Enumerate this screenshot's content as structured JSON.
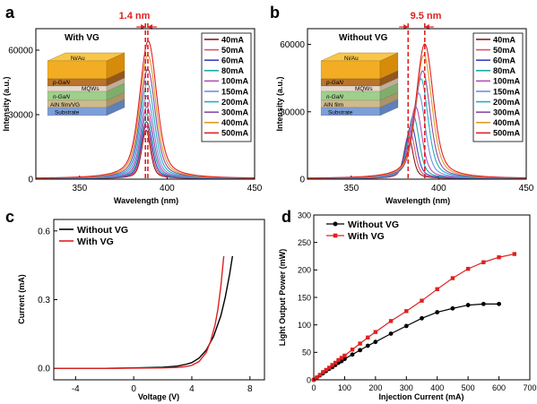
{
  "figure": {
    "panel_letters": [
      "a",
      "b",
      "c",
      "d"
    ],
    "panel_a": {
      "annotation": "1.4 nm",
      "inset_label": "With VG",
      "ylabel": "Intensity (a.u.)",
      "xlabel": "Wavelength (nm)",
      "layers": [
        "Ni/Au",
        "p-GaN",
        "MQWs",
        "n-GaN",
        "AlN film/VG",
        "Substrate"
      ]
    },
    "panel_b": {
      "annotation": "9.5 nm",
      "inset_label": "Without VG",
      "ylabel": "Intensity (a.u.)",
      "xlabel": "Wavelength (nm)",
      "layers": [
        "Ni/Au",
        "p-GaN",
        "MQWs",
        "n-GaN",
        "AlN film",
        "Substrate"
      ]
    },
    "panel_c": {
      "ylabel": "Current (mA)",
      "xlabel": "Voltage (V)"
    },
    "panel_d": {
      "ylabel": "Light Output Power (mW)",
      "xlabel": "Injection Current (mA)"
    },
    "current_legend": [
      "40mA",
      "50mA",
      "60mA",
      "80mA",
      "100mA",
      "150mA",
      "200mA",
      "300mA",
      "400mA",
      "500mA"
    ],
    "current_colors": [
      "#8b1a1a",
      "#e0506a",
      "#3e3ec0",
      "#1fa9a9",
      "#b44eb8",
      "#6f8fe0",
      "#22b0c0",
      "#8a4fa8",
      "#e09a2a",
      "#e02020"
    ]
  },
  "chart_data": [
    {
      "id": "a",
      "type": "line",
      "xlabel": "Wavelength (nm)",
      "ylabel": "Intensity (a.u.)",
      "xlim": [
        325,
        450
      ],
      "ylim": [
        0,
        70000
      ],
      "xticks": [
        350,
        400,
        450
      ],
      "yticks": [
        0,
        30000,
        60000
      ],
      "peak_markers_nm": [
        387.6,
        389.0
      ],
      "series": [
        {
          "name": "40mA",
          "peak_x": 388.0,
          "peak_y": 22500
        },
        {
          "name": "50mA",
          "peak_x": 388.1,
          "peak_y": 24500
        },
        {
          "name": "60mA",
          "peak_x": 388.2,
          "peak_y": 26500
        },
        {
          "name": "80mA",
          "peak_x": 388.3,
          "peak_y": 30000
        },
        {
          "name": "100mA",
          "peak_x": 388.4,
          "peak_y": 33500
        },
        {
          "name": "150mA",
          "peak_x": 388.5,
          "peak_y": 38500
        },
        {
          "name": "200mA",
          "peak_x": 388.7,
          "peak_y": 44500
        },
        {
          "name": "300mA",
          "peak_x": 388.9,
          "peak_y": 51000
        },
        {
          "name": "400mA",
          "peak_x": 389.0,
          "peak_y": 57500
        },
        {
          "name": "500mA",
          "peak_x": 389.2,
          "peak_y": 64000
        }
      ]
    },
    {
      "id": "b",
      "type": "line",
      "xlabel": "Wavelength (nm)",
      "ylabel": "Intensity (a.u.)",
      "xlim": [
        325,
        450
      ],
      "ylim": [
        0,
        67000
      ],
      "xticks": [
        350,
        400,
        450
      ],
      "yticks": [
        0,
        30000,
        60000
      ],
      "peak_markers_nm": [
        382.5,
        392.0
      ],
      "series": [
        {
          "name": "40mA",
          "peak_x": 382.7,
          "peak_y": 19000
        },
        {
          "name": "50mA",
          "peak_x": 383.5,
          "peak_y": 21500
        },
        {
          "name": "60mA",
          "peak_x": 384.3,
          "peak_y": 24000
        },
        {
          "name": "80mA",
          "peak_x": 385.5,
          "peak_y": 28000
        },
        {
          "name": "100mA",
          "peak_x": 386.8,
          "peak_y": 32000
        },
        {
          "name": "150mA",
          "peak_x": 388.5,
          "peak_y": 38000
        },
        {
          "name": "200mA",
          "peak_x": 389.8,
          "peak_y": 44500
        },
        {
          "name": "300mA",
          "peak_x": 390.8,
          "peak_y": 48000
        },
        {
          "name": "400mA",
          "peak_x": 391.5,
          "peak_y": 55000
        },
        {
          "name": "500mA",
          "peak_x": 392.0,
          "peak_y": 60000
        }
      ]
    },
    {
      "id": "c",
      "type": "line",
      "xlabel": "Voltage (V)",
      "ylabel": "Current (mA)",
      "xlim": [
        -5.5,
        9
      ],
      "ylim": [
        -0.05,
        0.65
      ],
      "xticks": [
        -4,
        0,
        4,
        8
      ],
      "yticks": [
        0.0,
        0.3,
        0.6
      ],
      "ytick_labels": [
        "0.0",
        "0.3",
        "0.6"
      ],
      "legend": [
        "Without VG",
        "With VG"
      ],
      "series": [
        {
          "name": "Without VG",
          "color": "#000000",
          "x": [
            -5.5,
            -2,
            0,
            2,
            3,
            3.5,
            4,
            4.5,
            5,
            5.5,
            6,
            6.3,
            6.6,
            6.8
          ],
          "y": [
            0.0,
            0.0,
            0.002,
            0.005,
            0.01,
            0.016,
            0.025,
            0.045,
            0.08,
            0.14,
            0.23,
            0.31,
            0.41,
            0.49
          ]
        },
        {
          "name": "With VG",
          "color": "#e02020",
          "x": [
            -5.5,
            -2,
            0,
            2,
            3,
            3.5,
            4,
            4.5,
            5,
            5.3,
            5.6,
            5.8,
            6.0,
            6.2
          ],
          "y": [
            0.0,
            0.0,
            0.001,
            0.002,
            0.004,
            0.007,
            0.013,
            0.03,
            0.07,
            0.12,
            0.19,
            0.26,
            0.36,
            0.49
          ]
        }
      ]
    },
    {
      "id": "d",
      "type": "line",
      "xlabel": "Injection Current (mA)",
      "ylabel": "Light Output Power (mW)",
      "xlim": [
        0,
        700
      ],
      "ylim": [
        0,
        300
      ],
      "xticks": [
        0,
        100,
        200,
        300,
        400,
        500,
        600,
        700
      ],
      "yticks": [
        0,
        50,
        100,
        150,
        200,
        250,
        300
      ],
      "legend": [
        "Without VG",
        "With VG"
      ],
      "series": [
        {
          "name": "Without VG",
          "color": "#000000",
          "marker": "circle",
          "x": [
            0,
            10,
            20,
            30,
            40,
            50,
            60,
            70,
            80,
            90,
            100,
            125,
            150,
            175,
            200,
            250,
            300,
            350,
            400,
            450,
            500,
            550,
            600
          ],
          "y": [
            0,
            4,
            8,
            12,
            16,
            20,
            23,
            27,
            31,
            34,
            38,
            46,
            54,
            62,
            69,
            84,
            98,
            112,
            123,
            130,
            136,
            138,
            138
          ]
        },
        {
          "name": "With VG",
          "color": "#e02020",
          "marker": "square",
          "x": [
            0,
            10,
            20,
            30,
            40,
            50,
            60,
            70,
            80,
            90,
            100,
            125,
            150,
            175,
            200,
            250,
            300,
            350,
            400,
            450,
            500,
            550,
            600,
            650
          ],
          "y": [
            0,
            4,
            9,
            14,
            18,
            22,
            27,
            31,
            36,
            40,
            44,
            55,
            66,
            77,
            87,
            107,
            125,
            144,
            165,
            185,
            202,
            214,
            223,
            229
          ]
        }
      ]
    }
  ]
}
